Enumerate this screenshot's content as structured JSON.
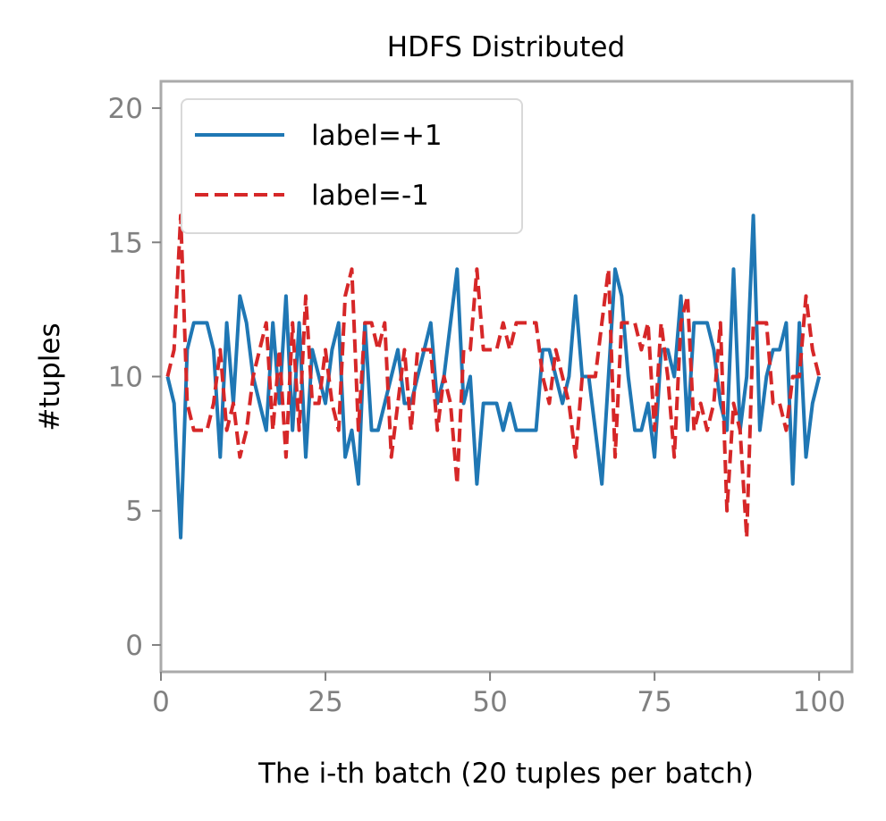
{
  "chart_data": {
    "type": "line",
    "title": "HDFS Distributed",
    "xlabel": "The i-th batch (20 tuples per batch)",
    "ylabel": "#tuples",
    "xlim": [
      0,
      105
    ],
    "ylim": [
      -1,
      21
    ],
    "xticks": [
      0,
      25,
      50,
      75,
      100
    ],
    "yticks": [
      0,
      5,
      10,
      15,
      20
    ],
    "grid": false,
    "legend_position": "top-left",
    "x": [
      1,
      2,
      3,
      4,
      5,
      6,
      7,
      8,
      9,
      10,
      11,
      12,
      13,
      14,
      15,
      16,
      17,
      18,
      19,
      20,
      21,
      22,
      23,
      24,
      25,
      26,
      27,
      28,
      29,
      30,
      31,
      32,
      33,
      34,
      35,
      36,
      37,
      38,
      39,
      40,
      41,
      42,
      43,
      44,
      45,
      46,
      47,
      48,
      49,
      50,
      51,
      52,
      53,
      54,
      55,
      56,
      57,
      58,
      59,
      60,
      61,
      62,
      63,
      64,
      65,
      66,
      67,
      68,
      69,
      70,
      71,
      72,
      73,
      74,
      75,
      76,
      77,
      78,
      79,
      80,
      81,
      82,
      83,
      84,
      85,
      86,
      87,
      88,
      89,
      90,
      91,
      92,
      93,
      94,
      95,
      96,
      97,
      98,
      99,
      100
    ],
    "series": [
      {
        "name": "label=+1",
        "color": "#1f77b4",
        "style": "solid",
        "values": [
          10,
          9,
          4,
          11,
          12,
          12,
          12,
          11,
          7,
          12,
          9,
          13,
          12,
          10,
          9,
          8,
          12,
          9,
          13,
          8,
          12,
          7,
          11,
          10,
          9,
          11,
          12,
          7,
          8,
          6,
          12,
          8,
          8,
          9,
          10,
          11,
          9,
          9,
          10,
          11,
          12,
          9,
          10,
          12,
          14,
          9,
          10,
          6,
          9,
          9,
          9,
          8,
          9,
          8,
          8,
          8,
          8,
          11,
          11,
          10,
          9,
          10,
          13,
          10,
          10,
          8,
          6,
          10,
          14,
          13,
          10,
          8,
          8,
          9,
          7,
          11,
          11,
          10,
          13,
          8,
          12,
          12,
          12,
          11,
          9,
          8,
          14,
          8,
          10,
          16,
          8,
          10,
          11,
          11,
          12,
          6,
          12,
          7,
          9,
          10
        ]
      },
      {
        "name": "label=-1",
        "color": "#d62728",
        "style": "dashed",
        "values": [
          10,
          11,
          16,
          9,
          8,
          8,
          8,
          9,
          11,
          8,
          9,
          7,
          8,
          10,
          11,
          12,
          8,
          11,
          7,
          12,
          8,
          13,
          9,
          9,
          11,
          9,
          8,
          13,
          14,
          8,
          12,
          12,
          11,
          12,
          7,
          9,
          11,
          8,
          11,
          11,
          11,
          8,
          10,
          9,
          6,
          11,
          11,
          14,
          11,
          11,
          11,
          12,
          11,
          12,
          12,
          12,
          12,
          10,
          9,
          11,
          10,
          9,
          7,
          10,
          10,
          10,
          12,
          14,
          7,
          12,
          12,
          12,
          11,
          12,
          8,
          12,
          10,
          7,
          12,
          13,
          8,
          9,
          8,
          9,
          12,
          5,
          9,
          8,
          4,
          12,
          12,
          12,
          9,
          9,
          8,
          10,
          10,
          13,
          11,
          10
        ]
      }
    ]
  }
}
